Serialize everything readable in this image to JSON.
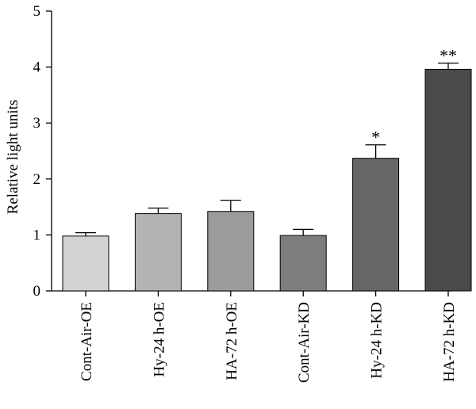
{
  "chart_data": {
    "type": "bar",
    "ylabel": "Relative light units",
    "ylim": [
      0,
      5
    ],
    "yticks": [
      0,
      1,
      2,
      3,
      4,
      5
    ],
    "categories": [
      "Cont-Air-OE",
      "Hy-24 h-OE",
      "HA-72 h-OE",
      "Cont-Air-KD",
      "Hy-24 h-KD",
      "HA-72 h-KD"
    ],
    "values": [
      0.98,
      1.38,
      1.42,
      0.99,
      2.37,
      3.96
    ],
    "errors": [
      0.06,
      0.1,
      0.2,
      0.11,
      0.24,
      0.11
    ],
    "significance": [
      "",
      "",
      "",
      "",
      "*",
      "**"
    ],
    "colors": [
      "#d2d2d2",
      "#b3b3b3",
      "#9b9b9b",
      "#7d7d7d",
      "#666666",
      "#4a4a4a"
    ],
    "grid": false,
    "legend": "none"
  }
}
